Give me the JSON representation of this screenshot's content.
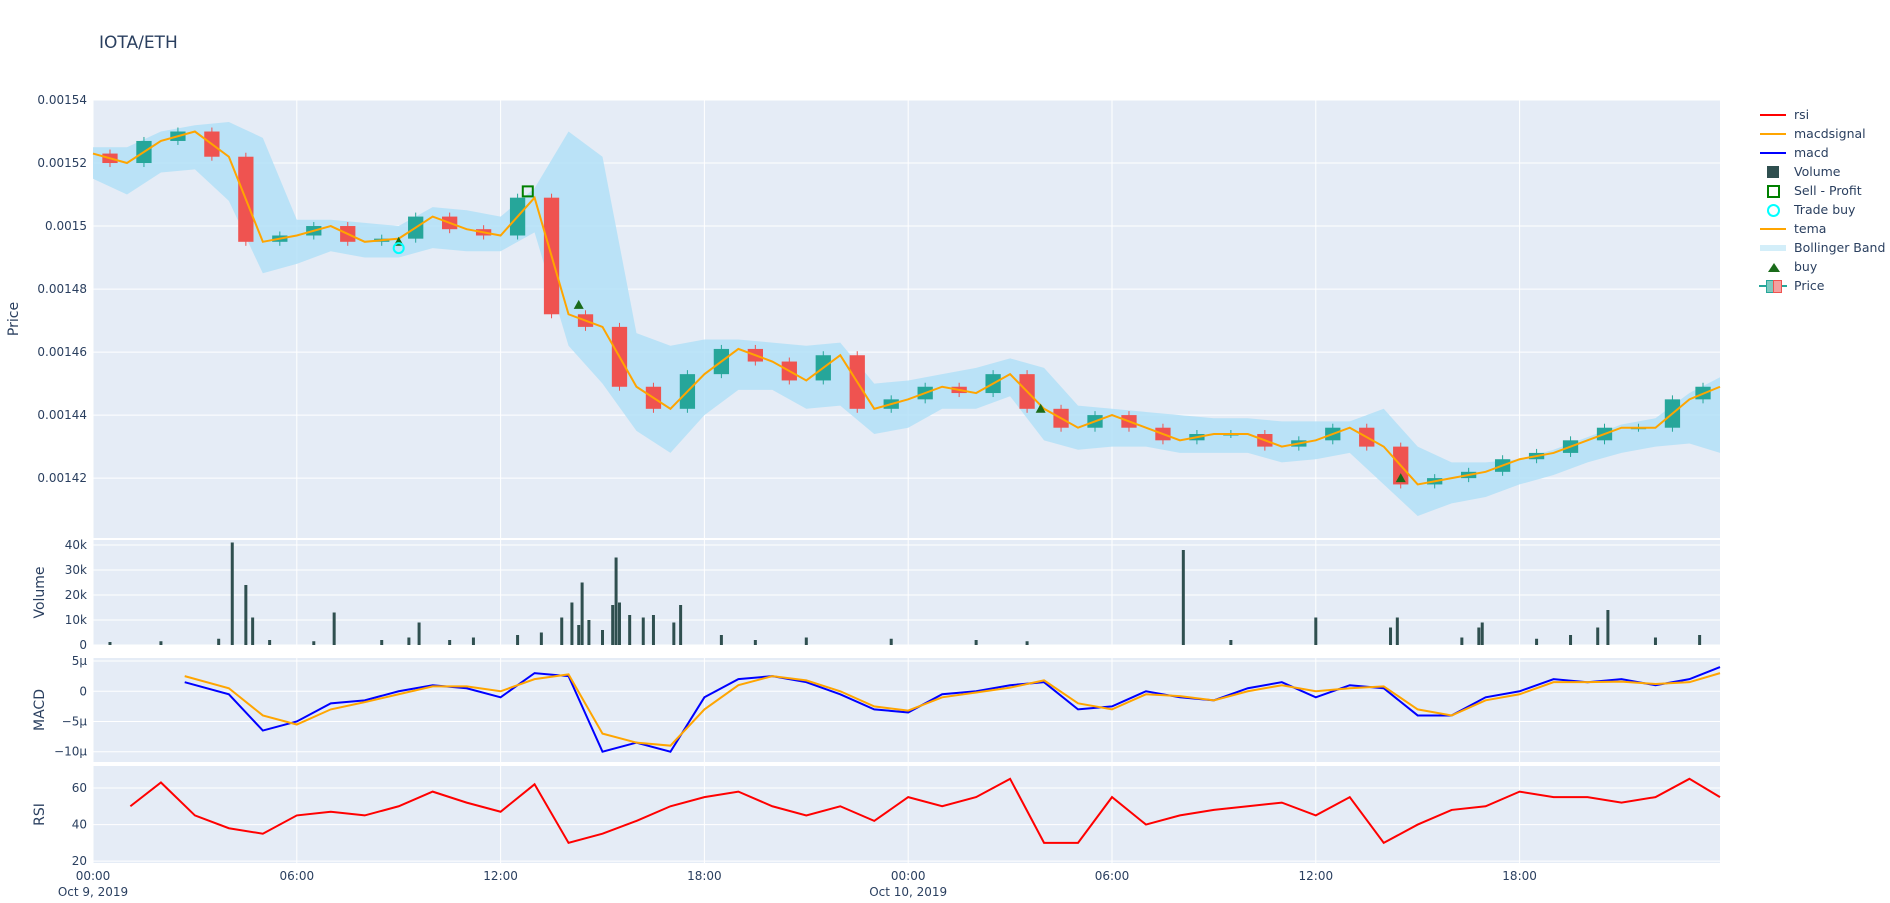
{
  "title": "IOTA/ETH",
  "colors": {
    "background": "#E5ECF6",
    "grid": "#ffffff",
    "increasing": "#26a69a",
    "decreasing": "#ef5350",
    "rsi": "#ff0000",
    "macd": "#0000ff",
    "macdsignal": "#ffa500",
    "tema": "#ffa500",
    "bollinger": "#b3e0f7",
    "volume": "#2f4f4f",
    "buy": "#1a6b1a",
    "sell": "#008000",
    "trade_buy": "#00ffff"
  },
  "legend": [
    "rsi",
    "macdsignal",
    "macd",
    "Volume",
    "Sell - Profit",
    "Trade buy",
    "tema",
    "Bollinger Band",
    "buy",
    "Price"
  ],
  "chart_data": [
    {
      "type": "candlestick",
      "ylabel": "Price",
      "ylim": [
        0.001401,
        0.00154
      ],
      "yticks": [
        "0.00154",
        "0.00152",
        "0.0015",
        "0.00148",
        "0.00146",
        "0.00144",
        "0.00142"
      ],
      "x_hours": [
        0,
        1,
        2,
        3,
        4,
        5,
        6,
        7,
        8,
        9,
        10,
        11,
        12,
        13,
        14,
        15,
        16,
        17,
        18,
        19,
        20,
        21,
        22,
        23,
        24,
        25,
        26,
        27,
        28,
        29,
        30,
        31,
        32,
        33,
        34,
        35,
        36,
        37,
        38,
        39,
        40,
        41,
        42,
        43,
        44,
        45,
        46,
        47,
        47.9
      ],
      "close": [
        0.001523,
        0.00152,
        0.001527,
        0.00153,
        0.001522,
        0.001495,
        0.001497,
        0.0015,
        0.001495,
        0.001496,
        0.001503,
        0.001499,
        0.001497,
        0.001509,
        0.001472,
        0.001468,
        0.001449,
        0.001442,
        0.001453,
        0.001461,
        0.001457,
        0.001451,
        0.001459,
        0.001442,
        0.001445,
        0.001449,
        0.001447,
        0.001453,
        0.001442,
        0.001436,
        0.00144,
        0.001436,
        0.001432,
        0.001434,
        0.001434,
        0.00143,
        0.001432,
        0.001436,
        0.00143,
        0.001418,
        0.00142,
        0.001422,
        0.001426,
        0.001428,
        0.001432,
        0.001436,
        0.001436,
        0.001445,
        0.001449
      ],
      "bb_upper": [
        0.001525,
        0.001525,
        0.00153,
        0.001532,
        0.001533,
        0.001528,
        0.001502,
        0.001502,
        0.001501,
        0.0015,
        0.001506,
        0.001505,
        0.001503,
        0.001512,
        0.00153,
        0.001522,
        0.001466,
        0.001462,
        0.001464,
        0.001464,
        0.001463,
        0.001462,
        0.001463,
        0.00145,
        0.001451,
        0.001453,
        0.001455,
        0.001458,
        0.001455,
        0.001443,
        0.001442,
        0.001441,
        0.00144,
        0.001439,
        0.001439,
        0.001438,
        0.001438,
        0.001438,
        0.001442,
        0.00143,
        0.001425,
        0.001425,
        0.001426,
        0.001429,
        0.001433,
        0.001437,
        0.001439,
        0.001447,
        0.001452
      ],
      "bb_lower": [
        0.001515,
        0.00151,
        0.001517,
        0.001518,
        0.001508,
        0.001485,
        0.001488,
        0.001492,
        0.00149,
        0.00149,
        0.001493,
        0.001492,
        0.001492,
        0.001498,
        0.001462,
        0.00145,
        0.001435,
        0.001428,
        0.00144,
        0.001448,
        0.001448,
        0.001442,
        0.001443,
        0.001434,
        0.001436,
        0.001442,
        0.001442,
        0.001446,
        0.001432,
        0.001429,
        0.00143,
        0.00143,
        0.001428,
        0.001428,
        0.001428,
        0.001425,
        0.001426,
        0.001428,
        0.001418,
        0.001408,
        0.001412,
        0.001414,
        0.001418,
        0.001421,
        0.001425,
        0.001428,
        0.00143,
        0.001431,
        0.001428
      ],
      "buy": [
        [
          9,
          0.001495
        ],
        [
          14.3,
          0.001475
        ],
        [
          27.9,
          0.001442
        ],
        [
          38.5,
          0.00142
        ]
      ],
      "sell_profit": [
        [
          12.8,
          0.001511
        ]
      ],
      "trade_buy": [
        [
          9,
          0.001493
        ]
      ]
    },
    {
      "type": "bar",
      "ylabel": "Volume",
      "ylim": [
        0,
        42000
      ],
      "yticks": [
        {
          "v": 40000,
          "label": "40k"
        },
        {
          "v": 30000,
          "label": "30k"
        },
        {
          "v": 20000,
          "label": "20k"
        },
        {
          "v": 10000,
          "label": "10k"
        },
        {
          "v": 0,
          "label": "0"
        }
      ],
      "points": [
        [
          0.5,
          1200
        ],
        [
          2,
          1500
        ],
        [
          3.7,
          2500
        ],
        [
          4.1,
          41000
        ],
        [
          4.5,
          24000
        ],
        [
          4.7,
          11000
        ],
        [
          5.2,
          2000
        ],
        [
          6.5,
          1500
        ],
        [
          7.1,
          13000
        ],
        [
          8.5,
          2000
        ],
        [
          9.3,
          3000
        ],
        [
          9.6,
          9000
        ],
        [
          10.5,
          2000
        ],
        [
          11.2,
          3000
        ],
        [
          12.5,
          4000
        ],
        [
          13.2,
          5000
        ],
        [
          13.8,
          11000
        ],
        [
          14.1,
          17000
        ],
        [
          14.3,
          8000
        ],
        [
          14.4,
          25000
        ],
        [
          14.6,
          10000
        ],
        [
          15.0,
          6000
        ],
        [
          15.3,
          16000
        ],
        [
          15.4,
          35000
        ],
        [
          15.5,
          17000
        ],
        [
          15.8,
          12000
        ],
        [
          16.2,
          11000
        ],
        [
          16.5,
          12000
        ],
        [
          17.1,
          9000
        ],
        [
          17.3,
          16000
        ],
        [
          18.5,
          4000
        ],
        [
          19.5,
          2000
        ],
        [
          21.0,
          3000
        ],
        [
          23.5,
          2500
        ],
        [
          26.0,
          2000
        ],
        [
          27.5,
          1500
        ],
        [
          32.1,
          38000
        ],
        [
          33.5,
          2000
        ],
        [
          36.0,
          11000
        ],
        [
          38.2,
          7000
        ],
        [
          38.4,
          11000
        ],
        [
          40.3,
          3000
        ],
        [
          40.8,
          7000
        ],
        [
          40.9,
          9000
        ],
        [
          42.5,
          2500
        ],
        [
          43.5,
          4000
        ],
        [
          44.3,
          7000
        ],
        [
          44.6,
          14000
        ],
        [
          46.0,
          3000
        ],
        [
          47.3,
          4000
        ]
      ]
    },
    {
      "type": "line",
      "ylabel": "MACD",
      "ylim": [
        -1.17e-05,
        5.5e-06
      ],
      "yticks": [
        {
          "v": 5e-06,
          "label": "5µ"
        },
        {
          "v": 0,
          "label": "0"
        },
        {
          "v": -5e-06,
          "label": "−5µ"
        },
        {
          "v": -1e-05,
          "label": "−10µ"
        }
      ],
      "x_hours": [
        2.7,
        4,
        5,
        6,
        7,
        8,
        9,
        10,
        11,
        12,
        13,
        14,
        15,
        16,
        17,
        18,
        19,
        20,
        21,
        22,
        23,
        24,
        25,
        26,
        27,
        28,
        29,
        30,
        31,
        32,
        33,
        34,
        35,
        36,
        37,
        38,
        39,
        40,
        41,
        42,
        43,
        44,
        45,
        46,
        47,
        47.9
      ],
      "series": [
        {
          "name": "macd",
          "values": [
            1.5e-06,
            -5e-07,
            -6.5e-06,
            -5e-06,
            -2e-06,
            -1.5e-06,
            0,
            1e-06,
            5e-07,
            -1e-06,
            3e-06,
            2.5e-06,
            -1e-05,
            -8.5e-06,
            -1e-05,
            -1e-06,
            2e-06,
            2.5e-06,
            1.5e-06,
            -5e-07,
            -3e-06,
            -3.5e-06,
            -5e-07,
            0,
            1e-06,
            1.5e-06,
            -3e-06,
            -2.5e-06,
            0,
            -1e-06,
            -1.5e-06,
            5e-07,
            1.5e-06,
            -1e-06,
            1e-06,
            5e-07,
            -4e-06,
            -4e-06,
            -1e-06,
            0,
            2e-06,
            1.5e-06,
            2e-06,
            1e-06,
            2e-06,
            4e-06
          ]
        },
        {
          "name": "macdsignal",
          "values": [
            2.5e-06,
            5e-07,
            -4e-06,
            -5.5e-06,
            -3e-06,
            -1.8e-06,
            -5e-07,
            8e-07,
            8e-07,
            0,
            2e-06,
            2.8e-06,
            -7e-06,
            -8.5e-06,
            -9e-06,
            -3e-06,
            1e-06,
            2.5e-06,
            1.8e-06,
            0,
            -2.5e-06,
            -3.2e-06,
            -1e-06,
            -2e-07,
            6e-07,
            1.8e-06,
            -2e-06,
            -3e-06,
            -5e-07,
            -8e-07,
            -1.5e-06,
            0,
            1e-06,
            0,
            5e-07,
            8e-07,
            -3e-06,
            -4e-06,
            -1.5e-06,
            -5e-07,
            1.5e-06,
            1.5e-06,
            1.6e-06,
            1.2e-06,
            1.5e-06,
            3e-06
          ]
        }
      ]
    },
    {
      "type": "line",
      "ylabel": "RSI",
      "ylim": [
        19,
        72
      ],
      "yticks": [
        {
          "v": 60,
          "label": "60"
        },
        {
          "v": 40,
          "label": "40"
        },
        {
          "v": 20,
          "label": "20"
        }
      ],
      "x_hours": [
        1.1,
        2,
        3,
        4,
        5,
        6,
        7,
        8,
        9,
        10,
        11,
        12,
        13,
        14,
        15,
        16,
        17,
        18,
        19,
        20,
        21,
        22,
        23,
        24,
        25,
        26,
        27,
        28,
        29,
        30,
        31,
        32,
        33,
        34,
        35,
        36,
        37,
        38,
        39,
        40,
        41,
        42,
        43,
        44,
        45,
        46,
        47,
        47.9
      ],
      "series": [
        {
          "name": "rsi",
          "values": [
            50,
            63,
            45,
            38,
            35,
            45,
            47,
            45,
            50,
            58,
            52,
            47,
            62,
            30,
            35,
            42,
            50,
            55,
            58,
            50,
            45,
            50,
            42,
            55,
            50,
            55,
            65,
            30,
            30,
            55,
            40,
            45,
            48,
            50,
            52,
            45,
            55,
            30,
            40,
            48,
            50,
            58,
            55,
            55,
            52,
            55,
            65,
            55
          ]
        }
      ]
    }
  ],
  "x_axis": {
    "ticks": [
      {
        "h": 0,
        "label": "00:00"
      },
      {
        "h": 6,
        "label": "06:00"
      },
      {
        "h": 12,
        "label": "12:00"
      },
      {
        "h": 18,
        "label": "18:00"
      },
      {
        "h": 24,
        "label": "00:00"
      },
      {
        "h": 30,
        "label": "06:00"
      },
      {
        "h": 36,
        "label": "12:00"
      },
      {
        "h": 42,
        "label": "18:00"
      }
    ],
    "dates": [
      {
        "h": 0,
        "label": "Oct 9, 2019"
      },
      {
        "h": 24,
        "label": "Oct 10, 2019"
      }
    ],
    "range_hours": [
      0,
      47.9
    ]
  }
}
